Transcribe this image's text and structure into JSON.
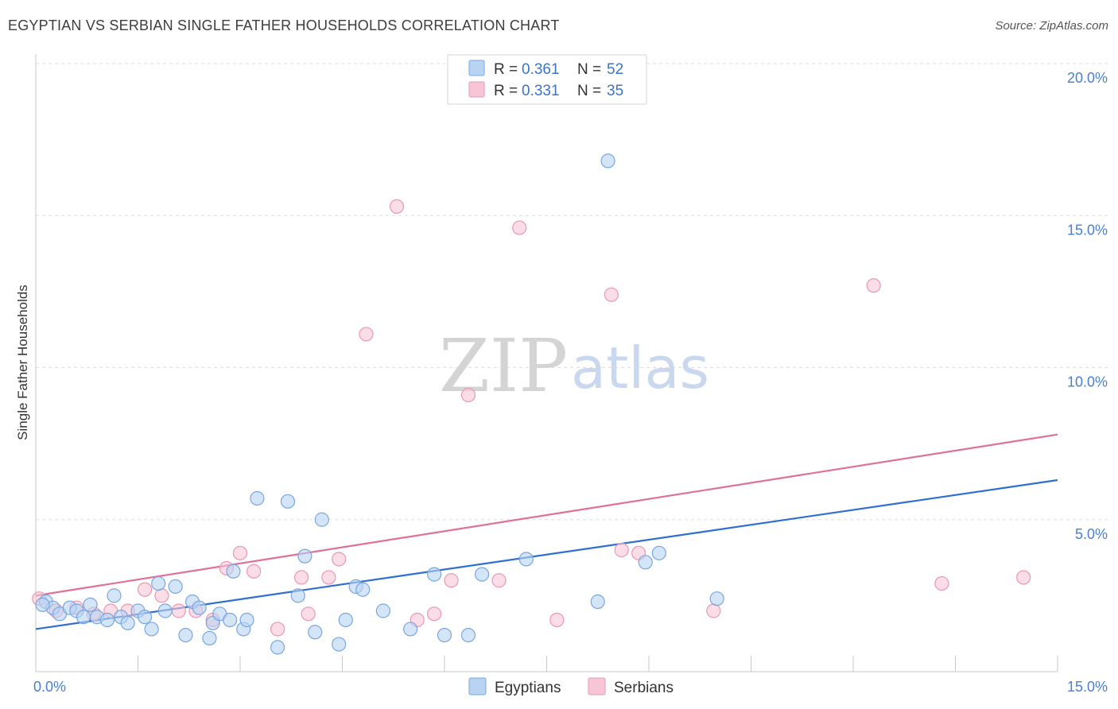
{
  "title": "EGYPTIAN VS SERBIAN SINGLE FATHER HOUSEHOLDS CORRELATION CHART",
  "source": "Source: ZipAtlas.com",
  "watermark": {
    "zip": "ZIP",
    "atlas": "atlas"
  },
  "colors": {
    "blue_fill": "#b9d3f3",
    "blue_stroke": "#7aa6df",
    "blue_line": "#2e6fd1",
    "pink_fill": "#f7c6d6",
    "pink_stroke": "#e898b3",
    "pink_line": "#e0709a",
    "grid": "#dddddd",
    "tick_text": "#4a7fd0"
  },
  "legend": [
    {
      "r_label": "R =",
      "r_value": "0.361",
      "n_label": "N =",
      "n_value": "52"
    },
    {
      "r_label": "R =",
      "r_value": "0.331",
      "n_label": "N =",
      "n_value": "35"
    }
  ],
  "chart_data": {
    "type": "scatter",
    "title": "EGYPTIAN VS SERBIAN SINGLE FATHER HOUSEHOLDS CORRELATION CHART",
    "xlabel": "",
    "ylabel": "Single Father Households",
    "xlim": [
      0,
      15
    ],
    "ylim": [
      0,
      20
    ],
    "x_ticks": [
      0,
      1.5,
      3,
      4.5,
      6,
      7.5,
      9,
      10.5,
      12,
      13.5,
      15
    ],
    "x_tick_labels": {
      "0": "0.0%",
      "15": "15.0%"
    },
    "y_ticks": [
      5,
      10,
      15,
      20
    ],
    "y_tick_labels": [
      "5.0%",
      "10.0%",
      "15.0%",
      "20.0%"
    ],
    "legend_position": "top-center",
    "series": [
      {
        "name": "Egyptians",
        "r": 0.361,
        "n": 52,
        "trend": {
          "x0": 0,
          "y0": 1.4,
          "x1": 15,
          "y1": 6.3
        },
        "points": [
          [
            0.15,
            2.3
          ],
          [
            0.25,
            2.1
          ],
          [
            0.35,
            1.9
          ],
          [
            0.5,
            2.1
          ],
          [
            0.6,
            2.0
          ],
          [
            0.7,
            1.8
          ],
          [
            0.8,
            2.2
          ],
          [
            0.9,
            1.8
          ],
          [
            1.05,
            1.7
          ],
          [
            1.15,
            2.5
          ],
          [
            1.25,
            1.8
          ],
          [
            1.35,
            1.6
          ],
          [
            1.5,
            2.0
          ],
          [
            1.6,
            1.8
          ],
          [
            1.7,
            1.4
          ],
          [
            1.8,
            2.9
          ],
          [
            1.9,
            2.0
          ],
          [
            2.05,
            2.8
          ],
          [
            2.2,
            1.2
          ],
          [
            2.3,
            2.3
          ],
          [
            2.4,
            2.1
          ],
          [
            2.55,
            1.1
          ],
          [
            2.6,
            1.6
          ],
          [
            2.7,
            1.9
          ],
          [
            2.85,
            1.7
          ],
          [
            2.9,
            3.3
          ],
          [
            3.05,
            1.4
          ],
          [
            3.1,
            1.7
          ],
          [
            3.25,
            5.7
          ],
          [
            3.55,
            0.8
          ],
          [
            3.7,
            5.6
          ],
          [
            3.85,
            2.5
          ],
          [
            3.95,
            3.8
          ],
          [
            4.1,
            1.3
          ],
          [
            4.2,
            5.0
          ],
          [
            4.45,
            0.9
          ],
          [
            4.55,
            1.7
          ],
          [
            4.7,
            2.8
          ],
          [
            4.8,
            2.7
          ],
          [
            5.1,
            2.0
          ],
          [
            5.5,
            1.4
          ],
          [
            5.85,
            3.2
          ],
          [
            6.0,
            1.2
          ],
          [
            6.35,
            1.2
          ],
          [
            6.55,
            3.2
          ],
          [
            7.2,
            3.7
          ],
          [
            8.25,
            2.3
          ],
          [
            8.4,
            16.8
          ],
          [
            8.95,
            3.6
          ],
          [
            9.15,
            3.9
          ],
          [
            10.0,
            2.4
          ],
          [
            0.1,
            2.2
          ]
        ]
      },
      {
        "name": "Serbians",
        "r": 0.331,
        "n": 35,
        "trend": {
          "x0": 0,
          "y0": 2.5,
          "x1": 15,
          "y1": 7.8
        },
        "points": [
          [
            0.05,
            2.4
          ],
          [
            0.3,
            2.0
          ],
          [
            0.6,
            2.1
          ],
          [
            0.85,
            1.9
          ],
          [
            1.1,
            2.0
          ],
          [
            1.35,
            2.0
          ],
          [
            1.6,
            2.7
          ],
          [
            1.85,
            2.5
          ],
          [
            2.1,
            2.0
          ],
          [
            2.35,
            2.0
          ],
          [
            2.6,
            1.7
          ],
          [
            2.8,
            3.4
          ],
          [
            3.0,
            3.9
          ],
          [
            3.2,
            3.3
          ],
          [
            3.55,
            1.4
          ],
          [
            3.9,
            3.1
          ],
          [
            4.0,
            1.9
          ],
          [
            4.3,
            3.1
          ],
          [
            4.45,
            3.7
          ],
          [
            4.85,
            11.1
          ],
          [
            5.3,
            15.3
          ],
          [
            5.6,
            1.7
          ],
          [
            5.85,
            1.9
          ],
          [
            6.1,
            3.0
          ],
          [
            6.35,
            9.1
          ],
          [
            6.8,
            3.0
          ],
          [
            7.1,
            14.6
          ],
          [
            7.65,
            1.7
          ],
          [
            8.45,
            12.4
          ],
          [
            8.6,
            4.0
          ],
          [
            8.85,
            3.9
          ],
          [
            9.95,
            2.0
          ],
          [
            12.3,
            12.7
          ],
          [
            13.3,
            2.9
          ],
          [
            14.5,
            3.1
          ]
        ]
      }
    ]
  }
}
